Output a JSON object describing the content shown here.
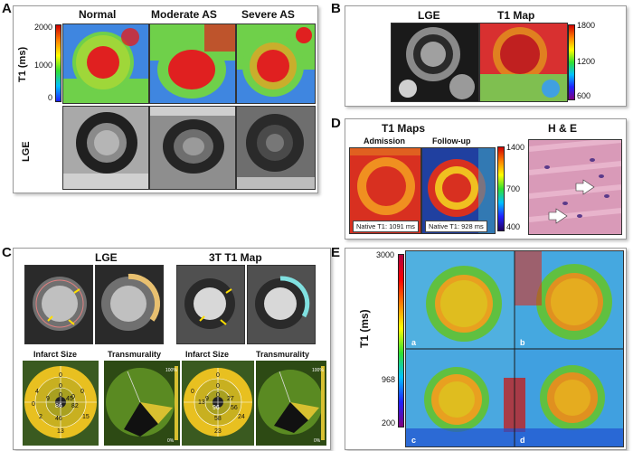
{
  "panels": {
    "A": {
      "letter": "A",
      "columns": [
        "Normal",
        "Moderate AS",
        "Severe AS"
      ],
      "row1_label": "T1 (ms)",
      "row2_label": "LGE",
      "scale": [
        "2000",
        "1000",
        "0"
      ]
    },
    "B": {
      "letter": "B",
      "titles": [
        "LGE",
        "T1 Map"
      ],
      "scale": [
        "1800",
        "1200",
        "600"
      ]
    },
    "C": {
      "letter": "C",
      "titles": [
        "LGE",
        "3T T1 Map"
      ],
      "sub": [
        "Infarct Size",
        "Transmurality",
        "Infarct Size",
        "Transmurality"
      ],
      "pct_top": "100%",
      "pct_bottom": "0%",
      "bullseye1": [
        "0",
        "0",
        "0",
        "4",
        "9",
        "0",
        "0",
        "45",
        "0",
        "86",
        "82",
        "46",
        "13",
        "15",
        "2",
        "0",
        "0"
      ],
      "bullseye2": [
        "0",
        "0",
        "0",
        "0",
        "13",
        "9",
        "27",
        "96",
        "56",
        "58",
        "24",
        "23",
        "0",
        "0",
        "0",
        "0",
        "0"
      ]
    },
    "D": {
      "letter": "D",
      "titles": [
        "T1 Maps",
        "H & E"
      ],
      "sub": [
        "Admission",
        "Follow-up"
      ],
      "notes": [
        "Native T1: 1091 ms",
        "Native T1: 928 ms"
      ],
      "scale": [
        "1400",
        "700",
        "400"
      ]
    },
    "E": {
      "letter": "E",
      "axis_label": "T1 (ms)",
      "scale": [
        "3000",
        "968",
        "200"
      ],
      "quadrants": [
        "a",
        "b",
        "c",
        "d"
      ]
    }
  },
  "colors": {
    "mri_green": "#6fd04a",
    "mri_red": "#e02020",
    "histology_pink": "#d99ab8"
  }
}
